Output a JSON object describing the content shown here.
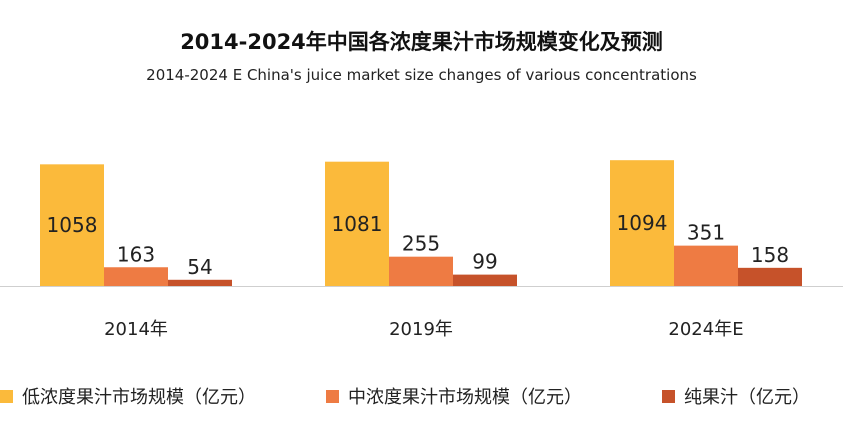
{
  "chart_data": {
    "type": "bar",
    "title": "2014-2024年中国各浓度果汁市场规模变化及预测",
    "subtitle": "2014-2024 E China's juice market size changes of various concentrations",
    "categories": [
      "2014年",
      "2019年",
      "2024年E"
    ],
    "series": [
      {
        "name": "低浓度果汁市场规模（亿元）",
        "values": [
          1058,
          1081,
          1094
        ],
        "color": "#FBBA3B"
      },
      {
        "name": "中浓度果汁市场规模（亿元）",
        "values": [
          163,
          255,
          351
        ],
        "color": "#EE7B43"
      },
      {
        "name": "纯果汁（亿元）",
        "values": [
          54,
          99,
          158
        ],
        "color": "#C6522A"
      }
    ],
    "xlabel": "",
    "ylabel": "",
    "ylim": [
      0,
      1100
    ],
    "grid": false,
    "legend_position": "bottom"
  }
}
